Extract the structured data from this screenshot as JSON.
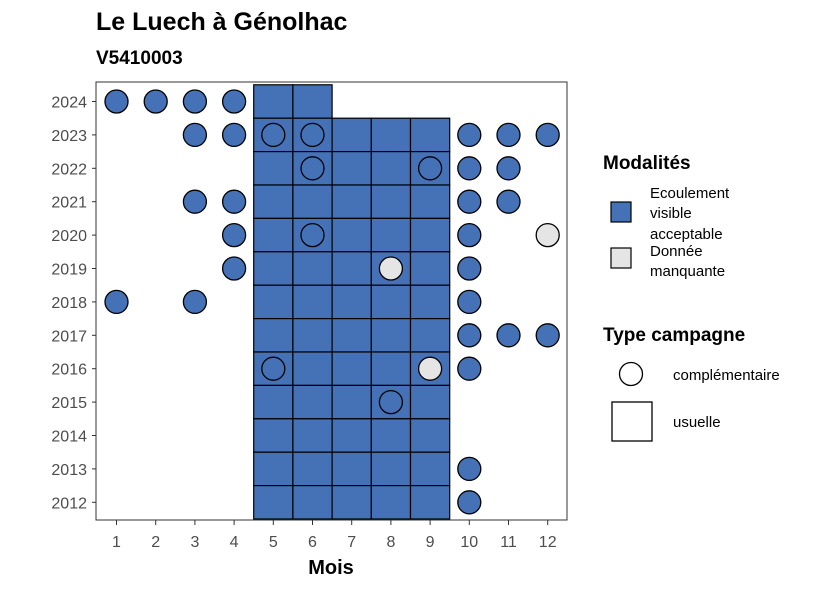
{
  "chart_data": {
    "type": "tile",
    "title": "Le Luech à Génolhac",
    "subtitle": "V5410003",
    "xlabel": "Mois",
    "ylabel": "",
    "x_ticks": [
      "1",
      "2",
      "3",
      "4",
      "5",
      "6",
      "7",
      "8",
      "9",
      "10",
      "11",
      "12"
    ],
    "y_ticks": [
      "2024",
      "2023",
      "2022",
      "2021",
      "2020",
      "2019",
      "2018",
      "2017",
      "2016",
      "2015",
      "2014",
      "2013",
      "2012"
    ],
    "colors": {
      "ecoulement": "#4572B7",
      "manquante": "#E5E5E5"
    },
    "legend_modalites": {
      "title": "Modalités",
      "items": [
        {
          "key": "ecoulement",
          "lines": [
            "Ecoulement",
            "visible",
            "acceptable"
          ]
        },
        {
          "key": "manquante",
          "lines": [
            "Donnée",
            "manquante"
          ]
        }
      ]
    },
    "legend_type": {
      "title": "Type campagne",
      "items": [
        {
          "shape": "circle",
          "label": "complémentaire"
        },
        {
          "shape": "square",
          "label": "usuelle"
        }
      ]
    },
    "usuelle": [
      {
        "year": 2024,
        "months": [
          5,
          6
        ],
        "value": "ecoulement"
      },
      {
        "year": 2023,
        "months": [
          5,
          6,
          7,
          8,
          9
        ],
        "value": "ecoulement"
      },
      {
        "year": 2022,
        "months": [
          5,
          6,
          7,
          8,
          9
        ],
        "value": "ecoulement"
      },
      {
        "year": 2021,
        "months": [
          5,
          6,
          7,
          8,
          9
        ],
        "value": "ecoulement"
      },
      {
        "year": 2020,
        "months": [
          5,
          6,
          7,
          8,
          9
        ],
        "value": "ecoulement"
      },
      {
        "year": 2019,
        "months": [
          5,
          6,
          7,
          8,
          9
        ],
        "value": "ecoulement"
      },
      {
        "year": 2018,
        "months": [
          5,
          6,
          7,
          8,
          9
        ],
        "value": "ecoulement"
      },
      {
        "year": 2017,
        "months": [
          5,
          6,
          7,
          8,
          9
        ],
        "value": "ecoulement"
      },
      {
        "year": 2016,
        "months": [
          5,
          6,
          7,
          8,
          9
        ],
        "value": "ecoulement"
      },
      {
        "year": 2015,
        "months": [
          5,
          6,
          7,
          8,
          9
        ],
        "value": "ecoulement"
      },
      {
        "year": 2014,
        "months": [
          5,
          6,
          7,
          8,
          9
        ],
        "value": "ecoulement"
      },
      {
        "year": 2013,
        "months": [
          5,
          6,
          7,
          8,
          9
        ],
        "value": "ecoulement"
      },
      {
        "year": 2012,
        "months": [
          5,
          6,
          7,
          8,
          9
        ],
        "value": "ecoulement"
      }
    ],
    "complementaire": [
      {
        "year": 2024,
        "month": 1,
        "value": "ecoulement"
      },
      {
        "year": 2024,
        "month": 2,
        "value": "ecoulement"
      },
      {
        "year": 2024,
        "month": 3,
        "value": "ecoulement"
      },
      {
        "year": 2024,
        "month": 4,
        "value": "ecoulement"
      },
      {
        "year": 2023,
        "month": 3,
        "value": "ecoulement"
      },
      {
        "year": 2023,
        "month": 4,
        "value": "ecoulement"
      },
      {
        "year": 2023,
        "month": 5,
        "value": "ecoulement"
      },
      {
        "year": 2023,
        "month": 6,
        "value": "ecoulement"
      },
      {
        "year": 2023,
        "month": 10,
        "value": "ecoulement"
      },
      {
        "year": 2023,
        "month": 11,
        "value": "ecoulement"
      },
      {
        "year": 2023,
        "month": 12,
        "value": "ecoulement"
      },
      {
        "year": 2022,
        "month": 6,
        "value": "ecoulement"
      },
      {
        "year": 2022,
        "month": 9,
        "value": "ecoulement"
      },
      {
        "year": 2022,
        "month": 10,
        "value": "ecoulement"
      },
      {
        "year": 2022,
        "month": 11,
        "value": "ecoulement"
      },
      {
        "year": 2021,
        "month": 3,
        "value": "ecoulement"
      },
      {
        "year": 2021,
        "month": 4,
        "value": "ecoulement"
      },
      {
        "year": 2021,
        "month": 10,
        "value": "ecoulement"
      },
      {
        "year": 2021,
        "month": 11,
        "value": "ecoulement"
      },
      {
        "year": 2020,
        "month": 4,
        "value": "ecoulement"
      },
      {
        "year": 2020,
        "month": 6,
        "value": "ecoulement"
      },
      {
        "year": 2020,
        "month": 10,
        "value": "ecoulement"
      },
      {
        "year": 2020,
        "month": 12,
        "value": "manquante"
      },
      {
        "year": 2019,
        "month": 4,
        "value": "ecoulement"
      },
      {
        "year": 2019,
        "month": 8,
        "value": "manquante"
      },
      {
        "year": 2019,
        "month": 10,
        "value": "ecoulement"
      },
      {
        "year": 2018,
        "month": 1,
        "value": "ecoulement"
      },
      {
        "year": 2018,
        "month": 3,
        "value": "ecoulement"
      },
      {
        "year": 2018,
        "month": 10,
        "value": "ecoulement"
      },
      {
        "year": 2017,
        "month": 10,
        "value": "ecoulement"
      },
      {
        "year": 2017,
        "month": 11,
        "value": "ecoulement"
      },
      {
        "year": 2017,
        "month": 12,
        "value": "ecoulement"
      },
      {
        "year": 2016,
        "month": 5,
        "value": "ecoulement"
      },
      {
        "year": 2016,
        "month": 9,
        "value": "manquante"
      },
      {
        "year": 2016,
        "month": 10,
        "value": "ecoulement"
      },
      {
        "year": 2015,
        "month": 8,
        "value": "ecoulement"
      },
      {
        "year": 2013,
        "month": 10,
        "value": "ecoulement"
      },
      {
        "year": 2012,
        "month": 10,
        "value": "ecoulement"
      }
    ]
  }
}
